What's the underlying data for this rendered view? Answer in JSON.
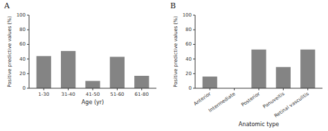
{
  "chart_data": [
    {
      "type": "bar",
      "title": "A",
      "categories": [
        "1-30",
        "31-40",
        "41-50",
        "51-60",
        "61-80"
      ],
      "values": [
        44,
        51,
        10,
        43,
        17
      ],
      "color": "#848484",
      "xlabel": "Age (yr)",
      "ylabel": "Positive predictive values (%)",
      "ylim": [
        0,
        100
      ],
      "yticks": [
        0,
        20,
        40,
        60,
        80,
        100
      ],
      "grid": false
    },
    {
      "type": "bar",
      "title": "B",
      "categories": [
        "Anterior",
        "Intermediate",
        "Posterior",
        "Panuveitis",
        "Retinal vasculitis"
      ],
      "values": [
        16,
        0,
        53,
        29,
        53
      ],
      "color": "#848484",
      "xlabel": "Anatomic type",
      "ylabel": "Positive predictive values (%)",
      "ylim": [
        0,
        100
      ],
      "yticks": [
        0,
        20,
        40,
        60,
        80,
        100
      ],
      "grid": false
    }
  ]
}
